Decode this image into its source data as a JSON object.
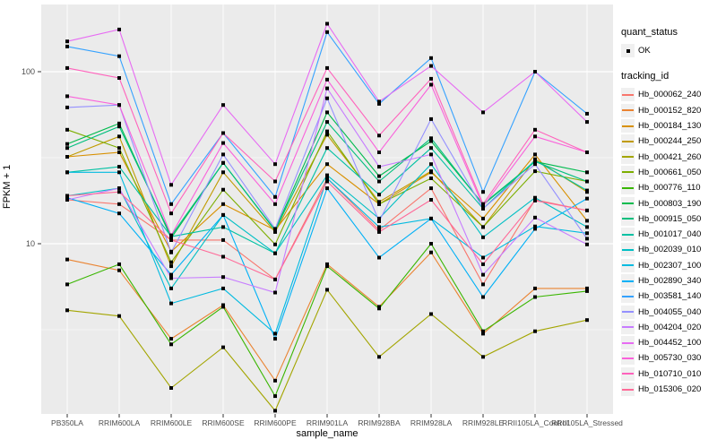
{
  "figure": {
    "background": "#FFFFFF",
    "panel_bg": "#EBEBEB",
    "grid_color": "#FFFFFF",
    "point_color": "#000000",
    "axis_text_color": "#4D4D4D"
  },
  "axes": {
    "x_title": "sample_name",
    "y_title": "FPKM + 1",
    "y_tick_labels": [
      "100",
      "10"
    ],
    "y_tick_values": [
      100,
      10
    ],
    "y_minor_values": [
      31.623,
      3.1623
    ]
  },
  "legend": {
    "quant_status": {
      "title": "quant_status",
      "items": [
        {
          "label": "OK",
          "shape": "point"
        }
      ]
    },
    "tracking": {
      "title": "tracking_id"
    }
  },
  "chart_data": {
    "type": "line",
    "title": "",
    "xlabel": "sample_name",
    "ylabel": "FPKM + 1",
    "y_scale": "log10",
    "ylim": [
      1,
      246
    ],
    "y_major_ticks": [
      10,
      100
    ],
    "grid": "on",
    "legend_position": "right",
    "point_shape": "square",
    "point_color": "#000000",
    "categories": [
      "PB350LA",
      "RRIM600LA",
      "RRIM600LE",
      "RRIM600SE",
      "RRIM600PE",
      "RRIM901LA",
      "RRIM928BA",
      "RRIM928LA",
      "RRIM928LE",
      "RRII105LA_Control",
      "RRII105LA_Stressed"
    ],
    "series": [
      {
        "name": "Hb_000062_240",
        "color": "#F8766D",
        "values": [
          18,
          17,
          10.5,
          10.5,
          6.2,
          24,
          12,
          21,
          5.8,
          18,
          15.6
        ]
      },
      {
        "name": "Hb_000152_820",
        "color": "#EA8331",
        "values": [
          8.1,
          7.0,
          2.8,
          4.4,
          1.6,
          7.6,
          4.3,
          8.9,
          3.0,
          5.5,
          5.5
        ]
      },
      {
        "name": "Hb_000184_130",
        "color": "#D89000",
        "values": [
          32,
          34,
          9.0,
          17,
          12,
          29,
          17,
          26,
          14,
          33,
          13.6
        ]
      },
      {
        "name": "Hb_000244_250",
        "color": "#C09B00",
        "values": [
          32,
          42,
          7.4,
          26,
          11.7,
          43,
          17.5,
          26.4,
          12.5,
          31,
          20
        ]
      },
      {
        "name": "Hb_000421_260",
        "color": "#A3A500",
        "values": [
          4.1,
          3.8,
          1.45,
          2.5,
          1.07,
          5.4,
          2.2,
          3.9,
          2.2,
          3.1,
          3.6
        ]
      },
      {
        "name": "Hb_000661_050",
        "color": "#7CAE00",
        "values": [
          46,
          36,
          7.8,
          20.6,
          9.9,
          45,
          17,
          24,
          12.5,
          26.4,
          23
        ]
      },
      {
        "name": "Hb_000776_110",
        "color": "#39B600",
        "values": [
          5.8,
          7.6,
          2.6,
          4.3,
          1.3,
          7.4,
          4.2,
          10,
          3.1,
          4.9,
          5.3
        ]
      },
      {
        "name": "Hb_000803_190",
        "color": "#00BB4E",
        "values": [
          38,
          50,
          10.8,
          29.5,
          12.0,
          58,
          24.7,
          39.5,
          17,
          30,
          26
        ]
      },
      {
        "name": "Hb_000915_050",
        "color": "#00BF7D",
        "values": [
          36,
          48,
          11.1,
          29.5,
          11.9,
          51,
          23,
          41,
          16.8,
          30,
          23
        ]
      },
      {
        "name": "Hb_001017_040",
        "color": "#00C1A3",
        "values": [
          26,
          28,
          11.0,
          12.5,
          8.8,
          36,
          19.3,
          36,
          16,
          30.5,
          20.4
        ]
      },
      {
        "name": "Hb_002039_010",
        "color": "#00BFC4",
        "values": [
          19,
          21,
          5.5,
          14.7,
          8.8,
          25,
          14,
          29,
          10.9,
          18.5,
          12.5
        ]
      },
      {
        "name": "Hb_002307_100",
        "color": "#00BAE0",
        "values": [
          26,
          26,
          4.5,
          5.5,
          3.0,
          24,
          12.5,
          14,
          8.3,
          12.6,
          11.5
        ]
      },
      {
        "name": "Hb_002890_340",
        "color": "#00B0F6",
        "values": [
          18.5,
          15,
          6.6,
          14.7,
          2.8,
          21,
          8.3,
          14,
          4.9,
          12.2,
          18.3
        ]
      },
      {
        "name": "Hb_003581_140",
        "color": "#35A2FF",
        "values": [
          140,
          123,
          17,
          44,
          18.7,
          170,
          65,
          120,
          20,
          100,
          57
        ]
      },
      {
        "name": "Hb_004055_040",
        "color": "#9590FF",
        "values": [
          62,
          64,
          8.9,
          33,
          12.2,
          70,
          13.5,
          53,
          16,
          29,
          10.7
        ]
      },
      {
        "name": "Hb_004204_020",
        "color": "#C77CFF",
        "values": [
          18,
          21,
          6.3,
          6.4,
          5.2,
          80,
          28,
          33,
          6.6,
          14.2,
          9.9
        ]
      },
      {
        "name": "Hb_004452_100",
        "color": "#E76BF3",
        "values": [
          150,
          176,
          22,
          64,
          29,
          190,
          67,
          108,
          58,
          100,
          51
        ]
      },
      {
        "name": "Hb_005730_030",
        "color": "#FA62DB",
        "values": [
          72,
          64,
          11.2,
          38.5,
          17,
          90,
          34,
          84,
          16.5,
          42,
          34
        ]
      },
      {
        "name": "Hb_010710_010",
        "color": "#FF62BC",
        "values": [
          105,
          92,
          15,
          44,
          23,
          105,
          42.5,
          91,
          17,
          46,
          34
        ]
      },
      {
        "name": "Hb_015306_020",
        "color": "#FF6A98",
        "values": [
          19,
          20,
          10.5,
          8.4,
          6.2,
          23,
          11.7,
          18,
          7.6,
          17.8,
          15.6
        ]
      }
    ]
  }
}
